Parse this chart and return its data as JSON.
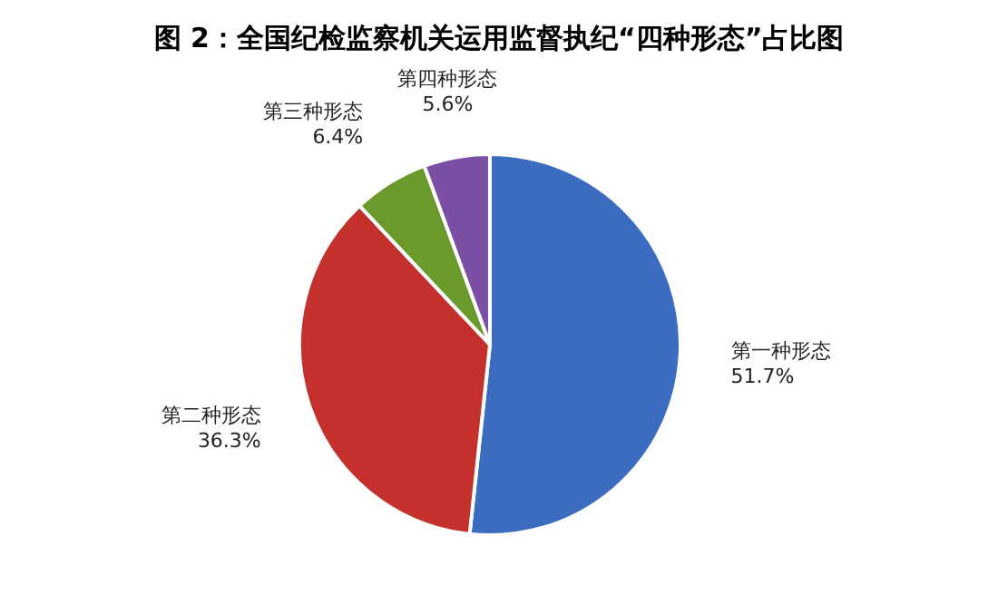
{
  "chart_data": {
    "type": "pie",
    "title": "图 2：全国纪检监察机关运用监督执纪“四种形态”占比图",
    "categories": [
      "第一种形态",
      "第二种形态",
      "第三种形态",
      "第四种形态"
    ],
    "values": [
      51.7,
      36.3,
      6.4,
      5.6
    ],
    "colors": [
      "#3b6cc0",
      "#c4302b",
      "#6b9a2c",
      "#7b4fa3"
    ],
    "value_labels": [
      "51.7%",
      "36.3%",
      "6.4%",
      "5.6%"
    ]
  }
}
